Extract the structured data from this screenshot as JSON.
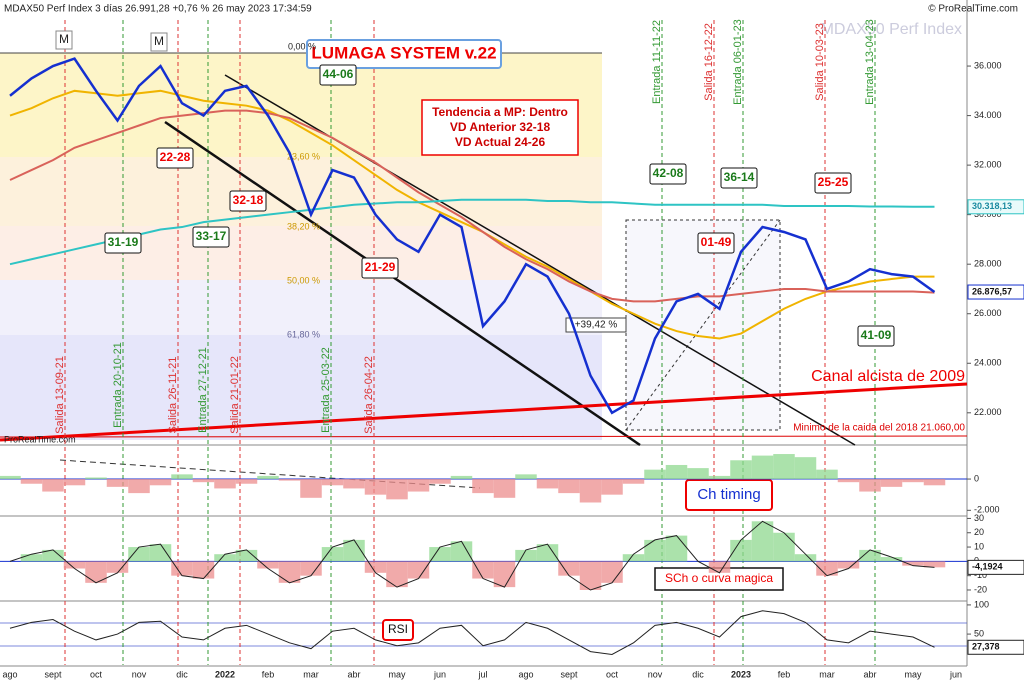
{
  "header": {
    "title": "MDAX50 Perf Index 3 días 26.991,28 +0,76 % 26 may 2023 17:34:59",
    "source": "© ProRealTime.com",
    "watermark": "MDAX50 Perf Index",
    "corner_source": "ProRealTime.com"
  },
  "chart_data": [
    {
      "type": "line",
      "title": "LUMAGA SYSTEM v.22",
      "categories": [
        "ago",
        null,
        "sept",
        null,
        "oct",
        null,
        "nov",
        null,
        "dic",
        null,
        "2022",
        null,
        "feb",
        null,
        "mar",
        null,
        "abr",
        null,
        "may",
        null,
        "jun",
        null,
        "jul",
        null,
        "ago",
        null,
        "sept",
        null,
        "oct",
        null,
        "nov",
        null,
        "dic",
        null,
        "2023",
        null,
        "feb",
        null,
        "mar",
        null,
        "abr",
        null,
        "may",
        null,
        "jun"
      ],
      "series": [
        {
          "color": "#f0b400",
          "values": [
            34000,
            34300,
            34700,
            35000,
            34900,
            34800,
            34900,
            35000,
            34800,
            34600,
            34500,
            34400,
            34200,
            33800,
            33300,
            32800,
            32200,
            31600,
            31000,
            30500,
            30100,
            29700,
            29300,
            28800,
            28300,
            27900,
            27400,
            26900,
            26400,
            26000,
            25600,
            25300,
            25100,
            25000,
            25200,
            25700,
            26200,
            26600,
            26900,
            27100,
            27300,
            27400,
            27500,
            27500,
            null
          ]
        },
        {
          "color": "#d9625a",
          "values": [
            31400,
            31800,
            32200,
            32700,
            33000,
            33300,
            33600,
            33900,
            34000,
            34100,
            34200,
            34200,
            34100,
            33900,
            33500,
            33100,
            32600,
            32100,
            31500,
            30900,
            30400,
            29900,
            29300,
            28700,
            28200,
            27800,
            27300,
            26900,
            26600,
            26500,
            26500,
            26600,
            26700,
            26700,
            26800,
            26900,
            27000,
            27000,
            26900,
            26900,
            26900,
            26900,
            26900,
            26850,
            null
          ]
        },
        {
          "color": "#2ec4c4",
          "values": [
            28000,
            28200,
            28400,
            28600,
            28800,
            29000,
            29200,
            29400,
            29500,
            29700,
            29800,
            29900,
            30000,
            30100,
            30200,
            30300,
            30400,
            30450,
            30500,
            30500,
            30550,
            30600,
            30600,
            30600,
            30600,
            30550,
            30550,
            30500,
            30500,
            30450,
            30400,
            30400,
            30400,
            30400,
            30400,
            30400,
            30350,
            30350,
            30350,
            30350,
            30330,
            30330,
            30320,
            30318.13,
            null
          ],
          "value_labels": [
            null,
            null,
            null,
            null,
            null,
            null,
            null,
            null,
            null,
            null,
            null,
            null,
            null,
            null,
            null,
            null,
            null,
            null,
            null,
            null,
            null,
            null,
            null,
            null,
            null,
            null,
            null,
            null,
            null,
            null,
            null,
            null,
            null,
            null,
            null,
            null,
            null,
            null,
            null,
            null,
            null,
            null,
            null,
            "30.318,13",
            null
          ]
        },
        {
          "color": "#1530d0",
          "values": [
            34800,
            35500,
            36000,
            36300,
            35000,
            33800,
            35200,
            36000,
            34500,
            34000,
            35000,
            35200,
            34000,
            32500,
            30000,
            31800,
            31500,
            30000,
            29000,
            28500,
            30000,
            29500,
            25500,
            26500,
            28000,
            27500,
            26000,
            23500,
            22000,
            22500,
            25000,
            26500,
            26800,
            26200,
            28500,
            29500,
            29300,
            29000,
            27000,
            27300,
            27800,
            27600,
            27500,
            26876.57,
            null
          ],
          "value_labels": [
            null,
            null,
            null,
            null,
            null,
            null,
            null,
            null,
            null,
            null,
            null,
            null,
            null,
            null,
            null,
            null,
            null,
            null,
            null,
            null,
            null,
            null,
            null,
            null,
            null,
            null,
            null,
            null,
            null,
            null,
            null,
            null,
            null,
            null,
            null,
            null,
            null,
            null,
            null,
            null,
            null,
            null,
            null,
            "26.876,57",
            null
          ]
        }
      ],
      "ylim": [
        20700,
        36850
      ],
      "yticks": [
        {
          "value": 22000,
          "label": "22.000"
        },
        {
          "value": 24000,
          "label": "24.000"
        },
        {
          "value": 26000,
          "label": "26.000"
        },
        {
          "value": 28000,
          "label": "28.000"
        },
        {
          "value": 30000,
          "label": "30.000"
        },
        {
          "value": 32000,
          "label": "32.000"
        },
        {
          "value": 34000,
          "label": "34.000"
        },
        {
          "value": 36000,
          "label": "36.000"
        }
      ],
      "annotations": {
        "trend_box": [
          "Tendencia a MP: Dentro",
          "VD Anterior 32-18",
          "VD Actual 24-26"
        ],
        "channel_label": "Canal alcista de 2009",
        "min_label": "Minimo de la caida del 2018  21.060,00",
        "gain_label": "+39,42 %",
        "markers": [
          "M",
          "M"
        ],
        "fib_labels": [
          "0,00 %",
          "23,60 %",
          "38,20 %",
          "50,00 %",
          "61,80 %"
        ],
        "scores": [
          "22-28",
          "31-19",
          "33-17",
          "32-18",
          "44-06",
          "21-29",
          "42-08",
          "36-14",
          "01-49",
          "25-25",
          "41-09"
        ],
        "signals": [
          "Salida 13-09-21",
          "Entrada 20-10-21",
          "Salida 26-11-21",
          "Entrada 27-12-21",
          "Salida 21-01-22",
          "Entrada 25-03-22",
          "Salida 26-04-22",
          "Entrada 11-11-22",
          "Salida 16-12-22",
          "Entrada 06-01-23",
          "Salida 10-03-23",
          "Entrada 13-04-23"
        ]
      }
    },
    {
      "type": "area",
      "title": "Ch timing",
      "values": [
        200,
        -300,
        -800,
        -400,
        100,
        -500,
        -900,
        -400,
        300,
        -200,
        -600,
        -300,
        200,
        -100,
        -1200,
        -400,
        -600,
        -1000,
        -1300,
        -800,
        -300,
        200,
        -900,
        -1200,
        300,
        -600,
        -900,
        -1500,
        -1000,
        -300,
        600,
        900,
        700,
        200,
        1200,
        1500,
        1600,
        1400,
        600,
        -200,
        -800,
        -500,
        -200,
        -400,
        null
      ],
      "ylim": [
        -2300,
        2050
      ],
      "yticks": [
        0,
        {
          "value": -2000,
          "label": "-2.000"
        }
      ]
    },
    {
      "type": "area",
      "title": "SCh o curva magica",
      "values": [
        0,
        5,
        8,
        -5,
        -15,
        -8,
        10,
        12,
        -10,
        -12,
        5,
        8,
        -5,
        -15,
        -10,
        10,
        15,
        -8,
        -18,
        -12,
        10,
        14,
        -12,
        -18,
        8,
        12,
        -10,
        -20,
        -15,
        5,
        15,
        18,
        0,
        -8,
        15,
        28,
        20,
        5,
        -10,
        -5,
        8,
        3,
        -3,
        -4.1924,
        null
      ],
      "value_labels": [
        null,
        null,
        null,
        null,
        null,
        null,
        null,
        null,
        null,
        null,
        null,
        null,
        null,
        null,
        null,
        null,
        null,
        null,
        null,
        null,
        null,
        null,
        null,
        null,
        null,
        null,
        null,
        null,
        null,
        null,
        null,
        null,
        null,
        null,
        null,
        null,
        null,
        null,
        null,
        null,
        null,
        null,
        null,
        "-4,1924",
        null
      ],
      "ylim": [
        -27,
        31
      ],
      "yticks": [
        30,
        20,
        10,
        0,
        -10,
        -20
      ]
    },
    {
      "type": "line",
      "title": "RSI",
      "values": [
        60,
        70,
        75,
        55,
        40,
        50,
        70,
        72,
        45,
        40,
        60,
        65,
        50,
        35,
        25,
        55,
        60,
        40,
        30,
        35,
        60,
        65,
        30,
        40,
        70,
        60,
        40,
        20,
        15,
        35,
        65,
        70,
        60,
        45,
        80,
        90,
        85,
        70,
        40,
        35,
        55,
        50,
        45,
        27.378,
        null
      ],
      "value_labels": [
        null,
        null,
        null,
        null,
        null,
        null,
        null,
        null,
        null,
        null,
        null,
        null,
        null,
        null,
        null,
        null,
        null,
        null,
        null,
        null,
        null,
        null,
        null,
        null,
        null,
        null,
        null,
        null,
        null,
        null,
        null,
        null,
        null,
        null,
        null,
        null,
        null,
        null,
        null,
        null,
        null,
        null,
        null,
        "27,378",
        null
      ],
      "ylim": [
        -3,
        105
      ],
      "yticks": [
        100,
        50
      ]
    }
  ]
}
